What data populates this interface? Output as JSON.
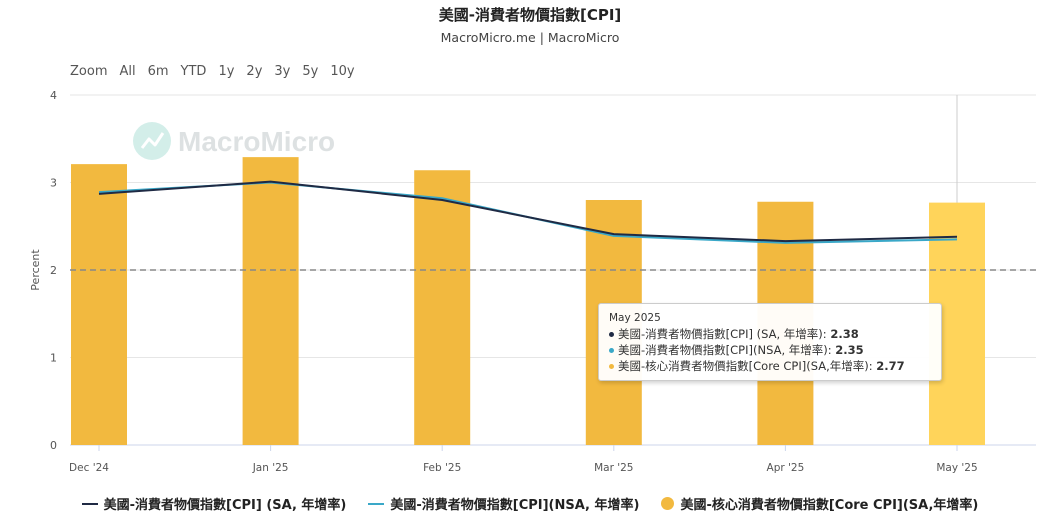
{
  "title": "美國-消費者物價指數[CPI]",
  "subtitle": "MacroMicro.me | MacroMicro",
  "watermark": "MacroMicro",
  "range_selector": [
    "Zoom",
    "All",
    "6m",
    "YTD",
    "1y",
    "2y",
    "3y",
    "5y",
    "10y"
  ],
  "colors": {
    "cpi_sa": "#1f2a44",
    "cpi_nsa": "#3aa8c8",
    "core_cpi": "#f2b93f",
    "core_cpi_highlight": "#ffd45a",
    "reference_line": "#888888"
  },
  "tooltip": {
    "date": "May 2025",
    "rows": [
      {
        "label": "美國-消費者物價指數[CPI] (SA, 年增率): ",
        "value": "2.38",
        "color": "#1f2a44"
      },
      {
        "label": "美國-消費者物價指數[CPI](NSA, 年增率): ",
        "value": "2.35",
        "color": "#3aa8c8"
      },
      {
        "label": "美國-核心消費者物價指數[Core CPI](SA,年增率): ",
        "value": "2.77",
        "color": "#f2b93f"
      }
    ]
  },
  "legend": [
    {
      "label": "美國-消費者物價指數[CPI] (SA, 年增率)",
      "color": "#1f2a44",
      "symbol": "line"
    },
    {
      "label": "美國-消費者物價指數[CPI](NSA, 年增率)",
      "color": "#3aa8c8",
      "symbol": "line"
    },
    {
      "label": "美國-核心消費者物價指數[Core CPI](SA,年增率)",
      "color": "#f2b93f",
      "symbol": "dot"
    }
  ],
  "chart_data": {
    "type": "bar",
    "categories": [
      "Dec '24",
      "Jan '25",
      "Feb '25",
      "Mar '25",
      "Apr '25",
      "May '25"
    ],
    "ylabel": "Percent",
    "ylim": [
      0,
      4
    ],
    "yticks": [
      0,
      1,
      2,
      3,
      4
    ],
    "reference_line": 2,
    "grid": true,
    "legend_position": "bottom",
    "highlighted_category": "May '25",
    "series": [
      {
        "name": "美國-核心消費者物價指數[Core CPI](SA,年增率)",
        "kind": "bar",
        "values": [
          3.21,
          3.29,
          3.14,
          2.8,
          2.78,
          2.77
        ]
      },
      {
        "name": "美國-消費者物價指數[CPI](NSA, 年增率)",
        "kind": "line",
        "values": [
          2.89,
          3.0,
          2.82,
          2.39,
          2.31,
          2.35
        ]
      },
      {
        "name": "美國-消費者物價指數[CPI] (SA, 年增率)",
        "kind": "line",
        "values": [
          2.87,
          3.01,
          2.8,
          2.41,
          2.33,
          2.38
        ]
      }
    ]
  }
}
